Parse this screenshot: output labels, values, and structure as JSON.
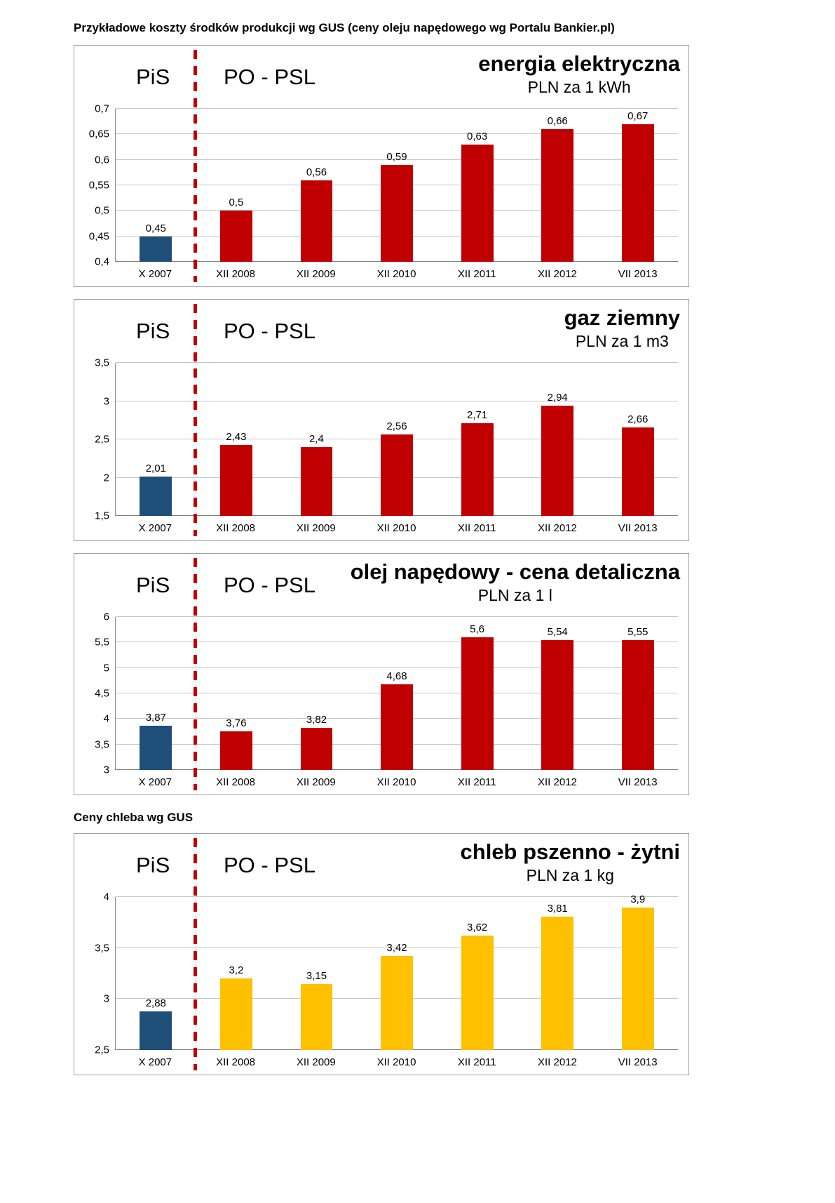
{
  "page": {
    "top_title": "Przykładowe koszty środków produkcji wg GUS (ceny oleju napędowego wg Portalu Bankier.pl)",
    "bread_section_title": "Ceny chleba wg GUS"
  },
  "labels": {
    "pis": "PiS",
    "popsl": "PO - PSL"
  },
  "colors": {
    "pis_bar": "#1F4E79",
    "popsl_bar_red": "#C00000",
    "popsl_bar_yellow": "#FFC000",
    "separator": "#C00000"
  },
  "chart_data": [
    {
      "type": "bar",
      "title": "energia elektryczna",
      "subtitle": "PLN za 1 kWh",
      "categories": [
        "X 2007",
        "XII 2008",
        "XII 2009",
        "XII 2010",
        "XII 2011",
        "XII 2012",
        "VII 2013"
      ],
      "values": [
        0.45,
        0.5,
        0.56,
        0.59,
        0.63,
        0.66,
        0.67
      ],
      "value_labels": [
        "0,45",
        "0,5",
        "0,56",
        "0,59",
        "0,63",
        "0,66",
        "0,67"
      ],
      "ylim": [
        0.4,
        0.7
      ],
      "ytick_labels": [
        "0,4",
        "0,45",
        "0,5",
        "0,55",
        "0,6",
        "0,65",
        "0,7"
      ],
      "bar_palette": "red",
      "grid": true,
      "legend": "none"
    },
    {
      "type": "bar",
      "title": "gaz ziemny",
      "subtitle": "PLN za 1 m3",
      "categories": [
        "X 2007",
        "XII 2008",
        "XII 2009",
        "XII 2010",
        "XII 2011",
        "XII 2012",
        "VII 2013"
      ],
      "values": [
        2.01,
        2.43,
        2.4,
        2.56,
        2.71,
        2.94,
        2.66
      ],
      "value_labels": [
        "2,01",
        "2,43",
        "2,4",
        "2,56",
        "2,71",
        "2,94",
        "2,66"
      ],
      "ylim": [
        1.5,
        3.5
      ],
      "ytick_labels": [
        "1,5",
        "2",
        "2,5",
        "3",
        "3,5"
      ],
      "bar_palette": "red",
      "grid": true,
      "legend": "none"
    },
    {
      "type": "bar",
      "title": "olej napędowy - cena detaliczna",
      "subtitle": "PLN za 1 l",
      "categories": [
        "X 2007",
        "XII 2008",
        "XII 2009",
        "XII 2010",
        "XII 2011",
        "XII 2012",
        "VII 2013"
      ],
      "values": [
        3.87,
        3.76,
        3.82,
        4.68,
        5.6,
        5.54,
        5.55
      ],
      "value_labels": [
        "3,87",
        "3,76",
        "3,82",
        "4,68",
        "5,6",
        "5,54",
        "5,55"
      ],
      "ylim": [
        3,
        6
      ],
      "ytick_labels": [
        "3",
        "3,5",
        "4",
        "4,5",
        "5",
        "5,5",
        "6"
      ],
      "bar_palette": "red",
      "grid": true,
      "legend": "none"
    },
    {
      "type": "bar",
      "title": "chleb pszenno - żytni",
      "subtitle": "PLN za 1 kg",
      "categories": [
        "X 2007",
        "XII 2008",
        "XII 2009",
        "XII 2010",
        "XII 2011",
        "XII 2012",
        "VII 2013"
      ],
      "values": [
        2.88,
        3.2,
        3.15,
        3.42,
        3.62,
        3.81,
        3.9
      ],
      "value_labels": [
        "2,88",
        "3,2",
        "3,15",
        "3,42",
        "3,62",
        "3,81",
        "3,9"
      ],
      "ylim": [
        2.5,
        4
      ],
      "ytick_labels": [
        "2,5",
        "3",
        "3,5",
        "4"
      ],
      "bar_palette": "yellow",
      "grid": true,
      "legend": "none"
    }
  ]
}
